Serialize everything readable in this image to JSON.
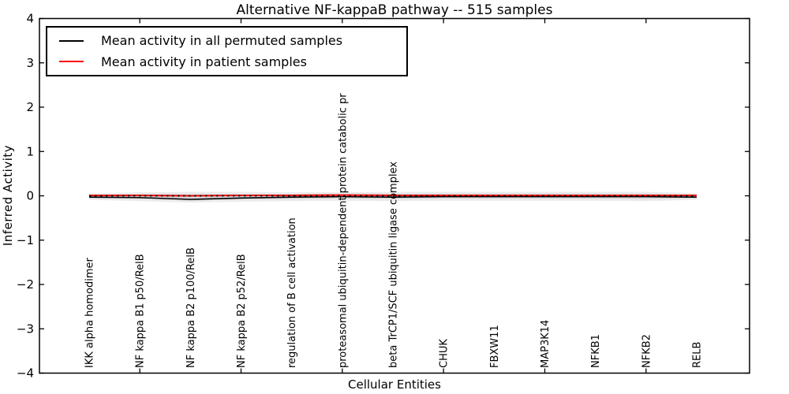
{
  "chart_data": {
    "type": "line",
    "title": "Alternative NF-kappaB pathway -- 515 samples",
    "xlabel": "Cellular Entities",
    "ylabel": "Inferred Activity",
    "ylim": [
      -4,
      4
    ],
    "yticks": [
      -4,
      -3,
      -2,
      -1,
      0,
      1,
      2,
      3,
      4
    ],
    "grid": false,
    "categories": [
      "IKK alpha homodimer",
      "NF kappa B1 p50/RelB",
      "NF kappa B2 p100/RelB",
      "NF kappa B2 p52/RelB",
      "regulation of B cell activation",
      "proteasomal ubiquitin-dependent protein catabolic pr",
      "beta TrCP1/SCF ubiquitin ligase complex",
      "CHUK",
      "FBXW11",
      "MAP3K14",
      "NFKB1",
      "NFKB2",
      "RELB"
    ],
    "x_tick_category_indices": [
      1,
      3,
      5,
      7,
      9,
      11
    ],
    "series": [
      {
        "name": "Mean activity in all permuted samples",
        "color": "#000000",
        "style": "solid",
        "values": [
          -0.03,
          -0.04,
          -0.08,
          -0.05,
          -0.03,
          -0.02,
          -0.03,
          -0.02,
          -0.02,
          -0.02,
          -0.02,
          -0.02,
          -0.03
        ]
      },
      {
        "name": "Mean activity in patient samples",
        "color": "#ff0000",
        "style": "solid",
        "values": [
          0.01,
          0.01,
          0.0,
          0.01,
          0.01,
          0.015,
          0.01,
          0.01,
          0.01,
          0.01,
          0.01,
          0.01,
          0.01
        ]
      }
    ],
    "reference_line": {
      "y": 0,
      "color": "#000000",
      "style": "dotted"
    },
    "bands": [
      {
        "name": "permuted-samples-spread-outer",
        "color": "#ebebeb",
        "upper": [
          0.05,
          0.08,
          0.09,
          0.09,
          0.08,
          0.08,
          0.09,
          0.09,
          0.09,
          0.09,
          0.09,
          0.09,
          0.06
        ],
        "lower": [
          -0.09,
          -0.12,
          -0.15,
          -0.13,
          -0.12,
          -0.11,
          -0.12,
          -0.11,
          -0.11,
          -0.11,
          -0.11,
          -0.12,
          -0.09
        ]
      },
      {
        "name": "permuted-samples-spread-inner",
        "color": "#d8d8d8",
        "upper": [
          0.02,
          0.04,
          0.04,
          0.04,
          0.04,
          0.05,
          0.05,
          0.05,
          0.05,
          0.05,
          0.05,
          0.05,
          0.03
        ],
        "lower": [
          -0.05,
          -0.07,
          -0.11,
          -0.08,
          -0.07,
          -0.06,
          -0.07,
          -0.06,
          -0.06,
          -0.06,
          -0.06,
          -0.07,
          -0.05
        ]
      }
    ],
    "legend": {
      "position": "upper left",
      "entries": [
        {
          "label": "Mean activity in all permuted samples",
          "color": "#000000"
        },
        {
          "label": "Mean activity in patient samples",
          "color": "#ff0000"
        }
      ]
    }
  }
}
